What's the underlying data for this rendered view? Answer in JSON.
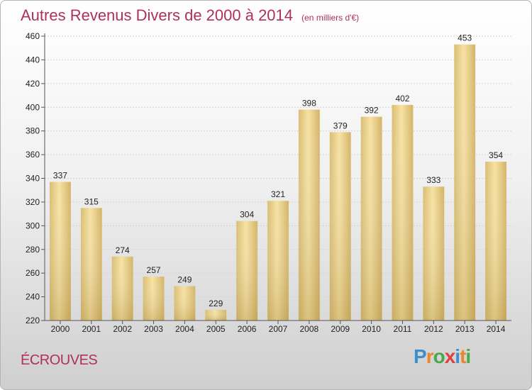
{
  "title": "Autres Revenus Divers de 2000 à 2014",
  "unit": "(en milliers d'€)",
  "commune": "ÉCROUVES",
  "logo": {
    "letters": [
      "P",
      "r",
      "o",
      "x",
      "i",
      "t",
      "i"
    ],
    "colors": [
      "#3a8fd0",
      "#e9862a",
      "#4aa84a",
      "#e04040",
      "#3a8fd0",
      "#e9862a",
      "#4aa84a"
    ]
  },
  "chart_data": {
    "type": "bar",
    "title": "Autres Revenus Divers de 2000 à 2014",
    "categories": [
      "2000",
      "2001",
      "2002",
      "2003",
      "2004",
      "2005",
      "2006",
      "2007",
      "2008",
      "2009",
      "2010",
      "2011",
      "2012",
      "2013",
      "2014"
    ],
    "values": [
      337,
      315,
      274,
      257,
      249,
      229,
      304,
      321,
      398,
      379,
      392,
      402,
      333,
      453,
      354
    ],
    "ylim": [
      220,
      460
    ],
    "yticks": [
      220,
      240,
      260,
      280,
      300,
      320,
      340,
      360,
      380,
      400,
      420,
      440,
      460
    ],
    "grid": true,
    "bar_color": "#f0d48c"
  }
}
